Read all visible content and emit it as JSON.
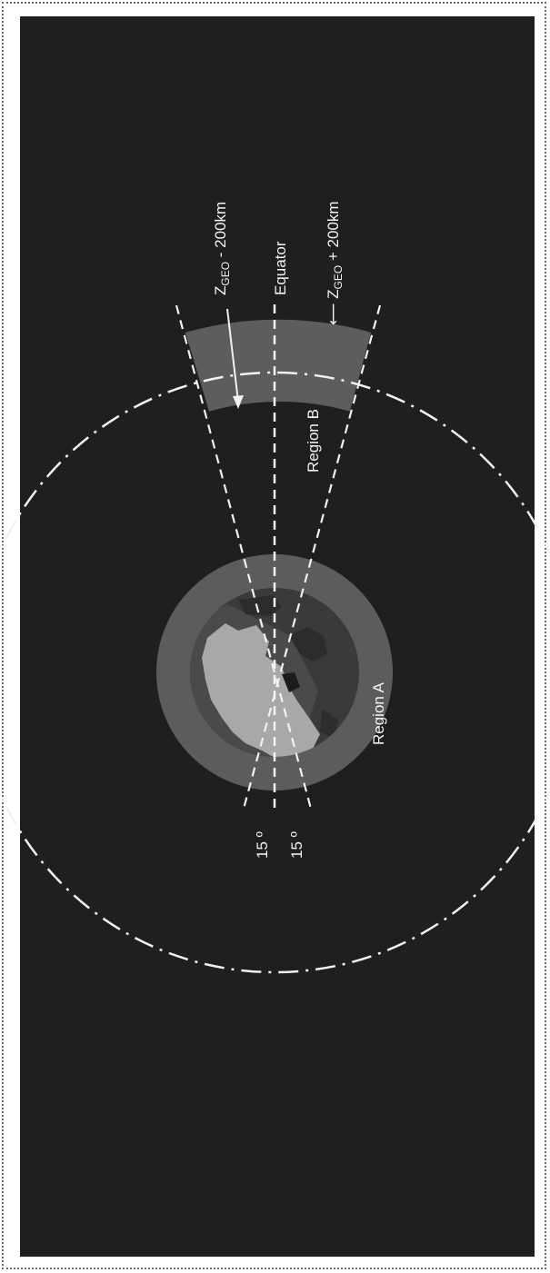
{
  "diagram": {
    "labels": {
      "z_geo_minus_prefix": "Z",
      "z_geo_minus_sub": "GEO",
      "z_geo_minus_suffix": " - 200km",
      "equator": "Equator",
      "z_geo_plus_arrow": "⟵",
      "z_geo_plus_prefix": " Z",
      "z_geo_plus_sub": "GEO",
      "z_geo_plus_suffix": " + 200km",
      "region_b": "Region B",
      "region_a": "Region A",
      "angle_top": "15 º",
      "angle_bottom": "15 º"
    },
    "colors": {
      "background": "#1f1f1f",
      "region_a": "#5c5c5c",
      "region_b": "#5d5d5d",
      "earth_ocean": "#3a3a3a",
      "earth_land": "#a8a8a8",
      "lines": "#f2f2f2"
    }
  }
}
